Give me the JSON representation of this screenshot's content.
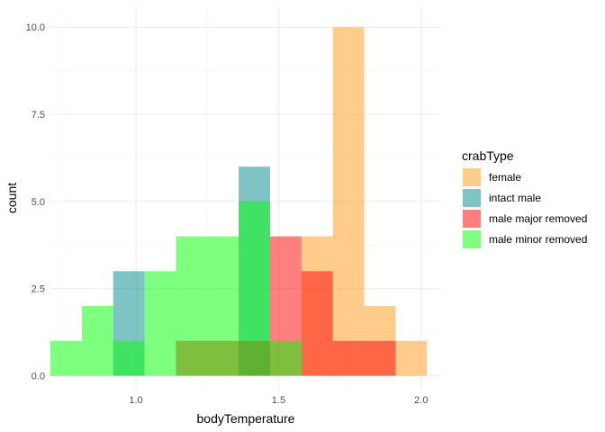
{
  "chart_data": {
    "type": "bar",
    "subtype": "overlapping histogram",
    "xlabel": "bodyTemperature",
    "ylabel": "count",
    "xlim": [
      0.7,
      2.07
    ],
    "ylim": [
      -0.4,
      10.6
    ],
    "bin_width": 0.11,
    "x_ticks": [
      {
        "value": 1.0,
        "label": "1.0"
      },
      {
        "value": 1.5,
        "label": "1.5"
      },
      {
        "value": 2.0,
        "label": "2.0"
      }
    ],
    "y_ticks": [
      {
        "value": 0,
        "label": "0.0"
      },
      {
        "value": 2.5,
        "label": "2.5"
      },
      {
        "value": 5,
        "label": "5.0"
      },
      {
        "value": 7.5,
        "label": "7.5"
      },
      {
        "value": 10,
        "label": "10.0"
      }
    ],
    "grid": true,
    "legend_title": "crabType",
    "legend_position": "right",
    "opacity": 0.5,
    "series": [
      {
        "name": "female",
        "color": "#ff9a1a",
        "bins": [
          {
            "x0": 1.58,
            "x1": 1.69,
            "count": 4
          },
          {
            "x0": 1.69,
            "x1": 1.8,
            "count": 10
          },
          {
            "x0": 1.8,
            "x1": 1.91,
            "count": 2
          },
          {
            "x0": 1.91,
            "x1": 2.02,
            "count": 1
          }
        ]
      },
      {
        "name": "intact male",
        "color": "#00898c",
        "bins": [
          {
            "x0": 0.92,
            "x1": 1.03,
            "count": 3
          },
          {
            "x0": 1.36,
            "x1": 1.47,
            "count": 6
          }
        ]
      },
      {
        "name": "male major removed",
        "color": "#ff0000",
        "bins": [
          {
            "x0": 1.14,
            "x1": 1.25,
            "count": 1
          },
          {
            "x0": 1.25,
            "x1": 1.36,
            "count": 1
          },
          {
            "x0": 1.36,
            "x1": 1.47,
            "count": 1
          },
          {
            "x0": 1.47,
            "x1": 1.58,
            "count": 4
          },
          {
            "x0": 1.58,
            "x1": 1.69,
            "count": 3
          },
          {
            "x0": 1.69,
            "x1": 1.8,
            "count": 1
          },
          {
            "x0": 1.8,
            "x1": 1.91,
            "count": 1
          }
        ]
      },
      {
        "name": "male minor removed",
        "color": "#00ff00",
        "bins": [
          {
            "x0": 0.7,
            "x1": 0.81,
            "count": 1
          },
          {
            "x0": 0.81,
            "x1": 0.92,
            "count": 2
          },
          {
            "x0": 0.92,
            "x1": 1.03,
            "count": 1
          },
          {
            "x0": 1.03,
            "x1": 1.14,
            "count": 3
          },
          {
            "x0": 1.14,
            "x1": 1.25,
            "count": 4
          },
          {
            "x0": 1.25,
            "x1": 1.36,
            "count": 4
          },
          {
            "x0": 1.36,
            "x1": 1.47,
            "count": 5
          },
          {
            "x0": 1.47,
            "x1": 1.58,
            "count": 1
          }
        ]
      }
    ]
  }
}
